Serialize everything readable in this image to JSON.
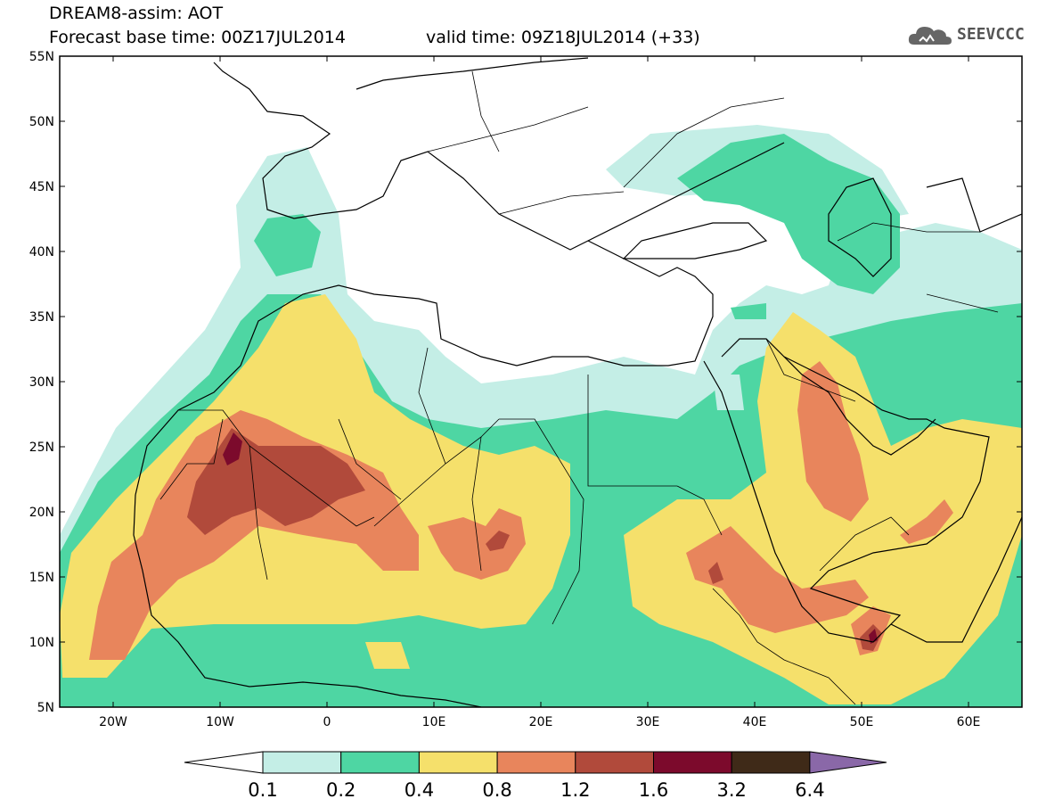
{
  "title": {
    "line1": "DREAM8-assim: AOT",
    "base": "Forecast base time: 00Z17JUL2014",
    "valid": "valid time: 09Z18JUL2014 (+33)"
  },
  "logo": {
    "text": "SEEVCCC",
    "icon": "cloud-logo-icon"
  },
  "map": {
    "lon_range": [
      -25,
      65
    ],
    "lat_range": [
      5,
      55
    ],
    "lat_ticks": [
      "55N",
      "50N",
      "45N",
      "40N",
      "35N",
      "30N",
      "25N",
      "20N",
      "15N",
      "10N",
      "5N"
    ],
    "lon_ticks": [
      "20W",
      "10W",
      "0",
      "10E",
      "20E",
      "30E",
      "40E",
      "50E",
      "60E"
    ]
  },
  "colorbar": {
    "labels": [
      "0.1",
      "0.2",
      "0.4",
      "0.8",
      "1.2",
      "1.6",
      "3.2",
      "6.4"
    ],
    "colors": {
      "c1": "#c4eee6",
      "c2": "#4ed6a3",
      "c3": "#f5e06b",
      "c4": "#e8855c",
      "c5": "#b14a3b",
      "c6": "#7c0a2c",
      "c7": "#3f2a18",
      "c8": "#8a68a8"
    }
  }
}
